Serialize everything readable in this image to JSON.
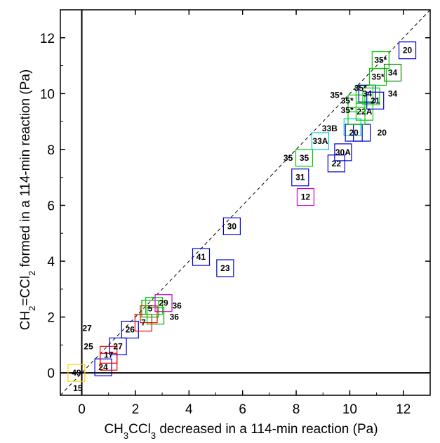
{
  "chart_data": {
    "type": "scatter",
    "title": "",
    "xlabel": {
      "main": "CH",
      "sub1": "3",
      "mid": "CCl",
      "sub2": "3",
      "tail": " decreased in a 114-min reaction (Pa)"
    },
    "ylabel": {
      "main": "CH",
      "sub1": "2",
      "mid": "=CCl",
      "sub2": "2",
      "tail": " formed in a 114-min reaction (Pa)"
    },
    "xlim": [
      -0.8,
      13
    ],
    "ylim": [
      -0.8,
      13
    ],
    "xticks": [
      0,
      2,
      4,
      6,
      8,
      10,
      12
    ],
    "yticks": [
      0,
      2,
      4,
      6,
      8,
      10,
      12
    ],
    "xtick_labels": [
      "0",
      "2",
      "4",
      "6",
      "8",
      "10",
      "12"
    ],
    "ytick_labels": [
      "0",
      "2",
      "4",
      "6",
      "8",
      "10",
      "12"
    ],
    "grid": false,
    "legend": "none",
    "reference_line": {
      "style": "dashed",
      "slope": 1,
      "intercept": 0
    },
    "zero_lines": {
      "x": 0,
      "y": 0
    },
    "points": [
      {
        "label": "49",
        "x": -0.2,
        "y": 0.0,
        "color": "#ffd400"
      },
      {
        "label": "24",
        "x": 0.8,
        "y": 0.2,
        "color": "#0000cc"
      },
      {
        "label": "",
        "x": 1.0,
        "y": 0.4,
        "color": "#ee0000"
      },
      {
        "label": "17",
        "x": 1.0,
        "y": 0.65,
        "color": "#ee0000"
      },
      {
        "label": "27",
        "x": 1.35,
        "y": 0.95,
        "color": "#0000cc"
      },
      {
        "label": "26",
        "x": 1.8,
        "y": 1.55,
        "color": "#0000cc"
      },
      {
        "label": "7",
        "x": 2.3,
        "y": 1.8,
        "color": "#ee0000"
      },
      {
        "label": "",
        "x": 2.5,
        "y": 2.1,
        "color": "#ee0000"
      },
      {
        "label": "",
        "x": 2.75,
        "y": 2.05,
        "color": "#00aa00"
      },
      {
        "label": "5",
        "x": 2.55,
        "y": 2.3,
        "color": "#00aa00"
      },
      {
        "label": "",
        "x": 2.7,
        "y": 2.4,
        "color": "#00cc00"
      },
      {
        "label": "29",
        "x": 3.05,
        "y": 2.5,
        "color": "#cc00cc"
      },
      {
        "label": "41",
        "x": 4.45,
        "y": 4.15,
        "color": "#0000cc"
      },
      {
        "label": "23",
        "x": 5.35,
        "y": 3.75,
        "color": "#0000cc"
      },
      {
        "label": "30",
        "x": 5.6,
        "y": 5.25,
        "color": "#0000cc"
      },
      {
        "label": "12",
        "x": 8.35,
        "y": 6.3,
        "color": "#cc00cc"
      },
      {
        "label": "31",
        "x": 8.15,
        "y": 7.0,
        "color": "#0000cc"
      },
      {
        "label": "35",
        "x": 8.3,
        "y": 7.7,
        "color": "#00cc00"
      },
      {
        "label": "33A",
        "x": 8.9,
        "y": 8.3,
        "color": "#00cccc"
      },
      {
        "label": "22",
        "x": 9.5,
        "y": 7.5,
        "color": "#0000cc"
      },
      {
        "label": "30A",
        "x": 9.75,
        "y": 7.9,
        "color": "#0000cc"
      },
      {
        "label": "",
        "x": 10.1,
        "y": 8.8,
        "color": "#00cccc"
      },
      {
        "label": "20",
        "x": 10.15,
        "y": 8.6,
        "color": "#0000cc"
      },
      {
        "label": "",
        "x": 10.45,
        "y": 8.6,
        "color": "#0000cc"
      },
      {
        "label": "",
        "x": 10.25,
        "y": 9.2,
        "color": "#00cc00"
      },
      {
        "label": "22A",
        "x": 10.55,
        "y": 9.35,
        "color": "#00cc00"
      },
      {
        "label": "",
        "x": 10.25,
        "y": 9.65,
        "color": "#00cc00"
      },
      {
        "label": "",
        "x": 10.55,
        "y": 10.0,
        "color": "#00cc00"
      },
      {
        "label": "34",
        "x": 10.65,
        "y": 10.0,
        "color": "#0000cc"
      },
      {
        "label": "",
        "x": 10.8,
        "y": 9.9,
        "color": "#00cc00"
      },
      {
        "label": "21",
        "x": 10.95,
        "y": 9.75,
        "color": "#0000cc"
      },
      {
        "label": "35*",
        "x": 11.05,
        "y": 10.6,
        "color": "#00cc00"
      },
      {
        "label": "35*",
        "x": 11.15,
        "y": 11.2,
        "color": "#00cc00"
      },
      {
        "label": "34",
        "x": 11.6,
        "y": 10.75,
        "color": "#008800"
      },
      {
        "label": "20",
        "x": 12.15,
        "y": 11.55,
        "color": "#0000cc"
      }
    ],
    "free_labels": [
      {
        "text": "25",
        "x": 0.25,
        "y": 0.95
      },
      {
        "text": "15",
        "x": -0.15,
        "y": -0.55
      },
      {
        "text": "27",
        "x": 0.2,
        "y": 1.6
      },
      {
        "text": "36",
        "x": 3.55,
        "y": 2.4
      },
      {
        "text": "36",
        "x": 3.45,
        "y": 2.0
      },
      {
        "text": "35",
        "x": 7.7,
        "y": 7.7
      },
      {
        "text": "33B",
        "x": 9.25,
        "y": 8.75
      },
      {
        "text": "20",
        "x": 11.2,
        "y": 8.6
      },
      {
        "text": "35*",
        "x": 9.9,
        "y": 9.4
      },
      {
        "text": "35*",
        "x": 9.9,
        "y": 9.75
      },
      {
        "text": "35*",
        "x": 9.5,
        "y": 9.95
      },
      {
        "text": "35*",
        "x": 10.4,
        "y": 10.2
      },
      {
        "text": "34",
        "x": 11.6,
        "y": 10.0
      }
    ]
  }
}
